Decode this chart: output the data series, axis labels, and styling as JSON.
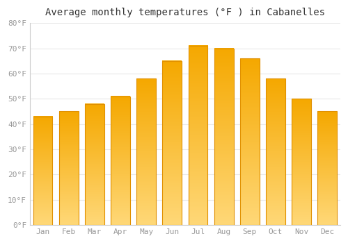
{
  "title": "Average monthly temperatures (°F ) in Cabanelles",
  "months": [
    "Jan",
    "Feb",
    "Mar",
    "Apr",
    "May",
    "Jun",
    "Jul",
    "Aug",
    "Sep",
    "Oct",
    "Nov",
    "Dec"
  ],
  "values": [
    43,
    45,
    48,
    51,
    58,
    65,
    71,
    70,
    66,
    58,
    50,
    45
  ],
  "bar_color_top": "#F5A800",
  "bar_color_bottom": "#FFD878",
  "bar_edge_color": "#E09000",
  "ylim": [
    0,
    80
  ],
  "yticks": [
    0,
    10,
    20,
    30,
    40,
    50,
    60,
    70,
    80
  ],
  "background_color": "#FFFFFF",
  "plot_bg_color": "#FFFFFF",
  "grid_color": "#E8E8E8",
  "title_fontsize": 10,
  "tick_fontsize": 8,
  "bar_width": 0.75
}
